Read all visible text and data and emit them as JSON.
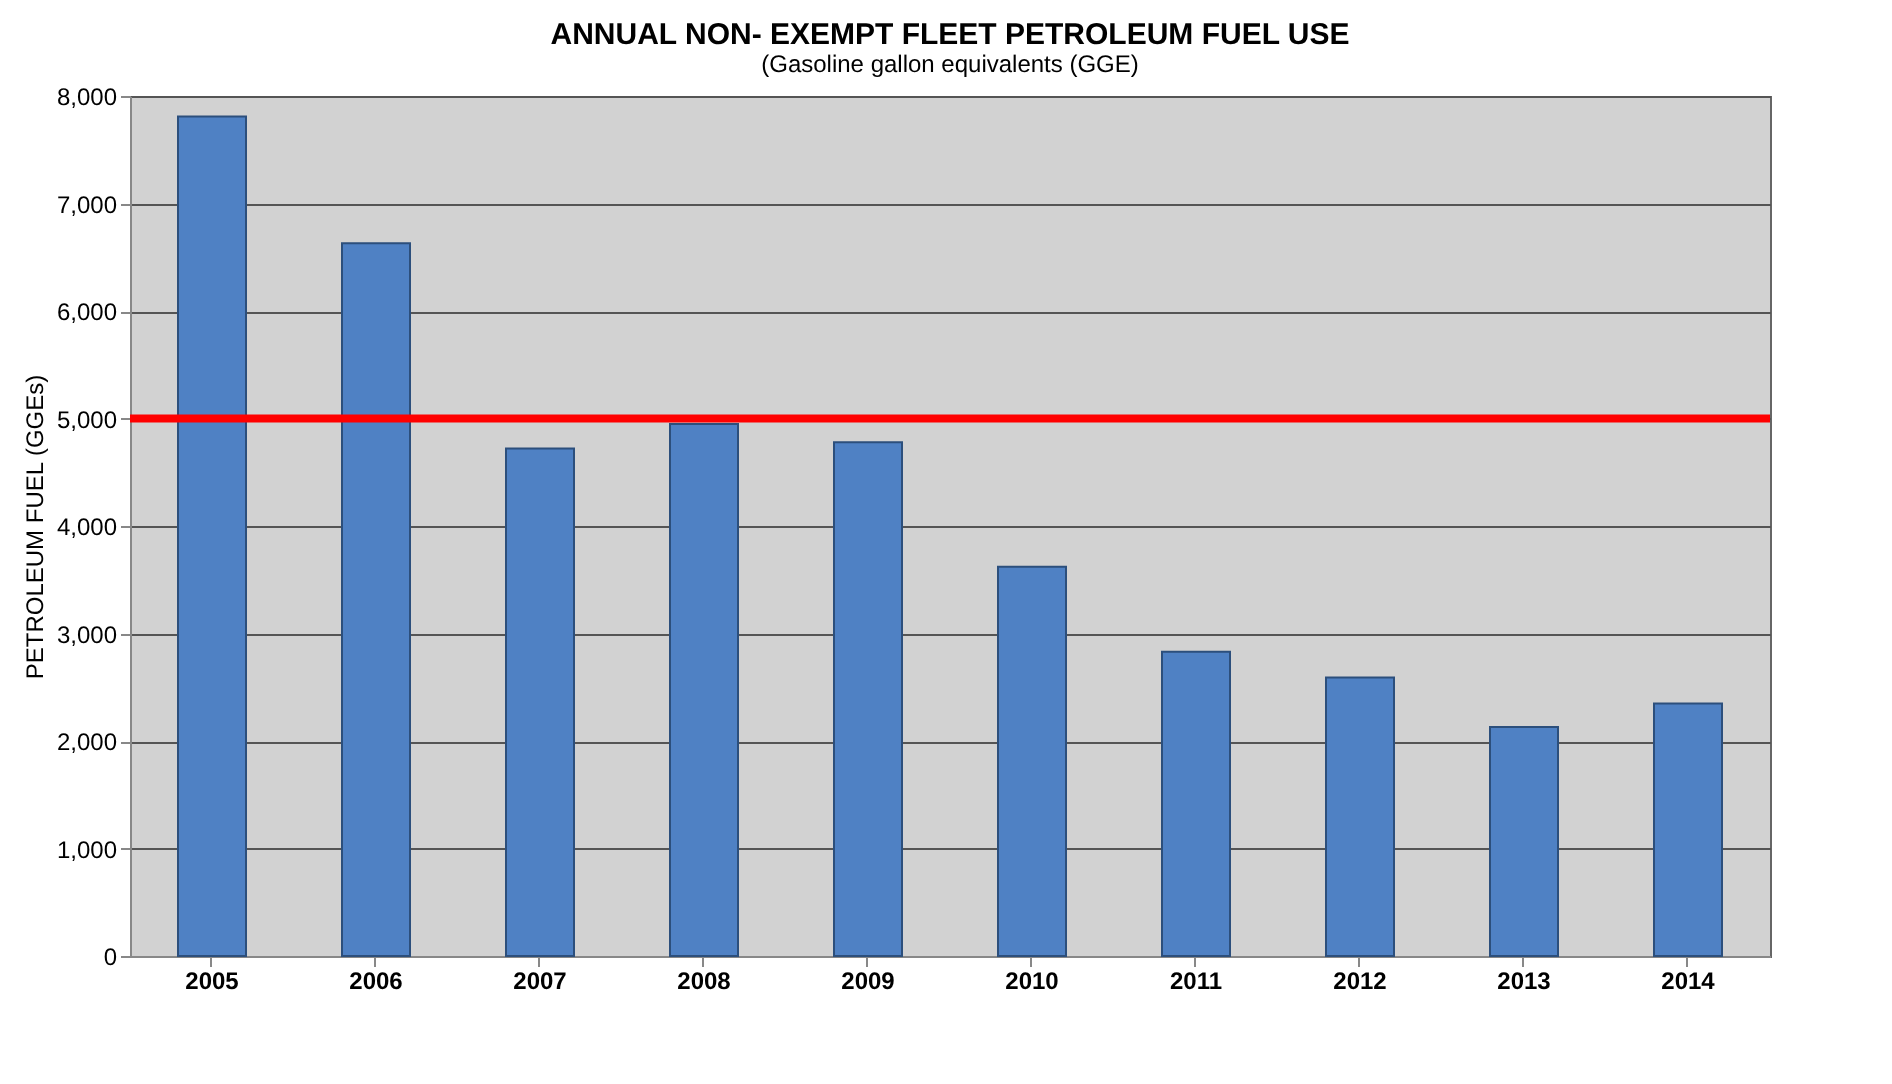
{
  "chart_data": {
    "type": "bar",
    "title": "ANNUAL NON- EXEMPT FLEET PETROLEUM FUEL USE",
    "subtitle": "(Gasoline gallon equivalents (GGE)",
    "ylabel": "PETROLEUM FUEL (GGEs)",
    "categories": [
      "2005",
      "2006",
      "2007",
      "2008",
      "2009",
      "2010",
      "2011",
      "2012",
      "2013",
      "2014"
    ],
    "values": [
      7810,
      6630,
      4720,
      4950,
      4780,
      3620,
      2830,
      2590,
      2130,
      2350
    ],
    "color": "#4f81c4",
    "ylim": [
      0,
      8000
    ],
    "yticks": [
      {
        "value": 0,
        "label": "0"
      },
      {
        "value": 1000,
        "label": "1,000"
      },
      {
        "value": 2000,
        "label": "2,000"
      },
      {
        "value": 3000,
        "label": "3,000"
      },
      {
        "value": 4000,
        "label": "4,000"
      },
      {
        "value": 5000,
        "label": "5,000"
      },
      {
        "value": 6000,
        "label": "6,000"
      },
      {
        "value": 7000,
        "label": "7,000"
      },
      {
        "value": 8000,
        "label": "8,000"
      }
    ],
    "grid": "y",
    "ref_lines": [
      {
        "axis": "y",
        "value": 5000,
        "color": "#ff0000"
      }
    ]
  }
}
